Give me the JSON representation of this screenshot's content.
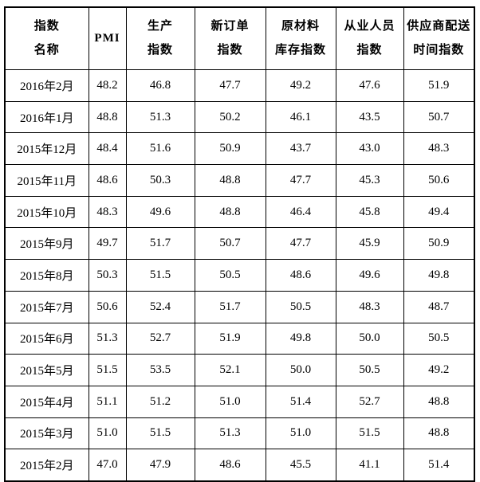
{
  "table": {
    "columns": [
      {
        "id": "index-name",
        "lines": [
          "指数",
          "名称"
        ]
      },
      {
        "id": "pmi",
        "lines": [
          "PMI"
        ]
      },
      {
        "id": "production-index",
        "lines": [
          "生产",
          "指数"
        ]
      },
      {
        "id": "new-orders-index",
        "lines": [
          "新订单",
          "指数"
        ]
      },
      {
        "id": "raw-materials-inventory-index",
        "lines": [
          "原材料",
          "库存指数"
        ]
      },
      {
        "id": "employment-index",
        "lines": [
          "从业人员",
          "指数"
        ]
      },
      {
        "id": "supplier-delivery-time-index",
        "lines": [
          "供应商配送",
          "时间指数"
        ]
      }
    ],
    "rows": [
      {
        "month": "2016年2月",
        "values": [
          "48.2",
          "46.8",
          "47.7",
          "49.2",
          "47.6",
          "51.9"
        ]
      },
      {
        "month": "2016年1月",
        "values": [
          "48.8",
          "51.3",
          "50.2",
          "46.1",
          "43.5",
          "50.7"
        ]
      },
      {
        "month": "2015年12月",
        "values": [
          "48.4",
          "51.6",
          "50.9",
          "43.7",
          "43.0",
          "48.3"
        ]
      },
      {
        "month": "2015年11月",
        "values": [
          "48.6",
          "50.3",
          "48.8",
          "47.7",
          "45.3",
          "50.6"
        ]
      },
      {
        "month": "2015年10月",
        "values": [
          "48.3",
          "49.6",
          "48.8",
          "46.4",
          "45.8",
          "49.4"
        ]
      },
      {
        "month": "2015年9月",
        "values": [
          "49.7",
          "51.7",
          "50.7",
          "47.7",
          "45.9",
          "50.9"
        ]
      },
      {
        "month": "2015年8月",
        "values": [
          "50.3",
          "51.5",
          "50.5",
          "48.6",
          "49.6",
          "49.8"
        ]
      },
      {
        "month": "2015年7月",
        "values": [
          "50.6",
          "52.4",
          "51.7",
          "50.5",
          "48.3",
          "48.7"
        ]
      },
      {
        "month": "2015年6月",
        "values": [
          "51.3",
          "52.7",
          "51.9",
          "49.8",
          "50.0",
          "50.5"
        ]
      },
      {
        "month": "2015年5月",
        "values": [
          "51.5",
          "53.5",
          "52.1",
          "50.0",
          "50.5",
          "49.2"
        ]
      },
      {
        "month": "2015年4月",
        "values": [
          "51.1",
          "51.2",
          "51.0",
          "51.4",
          "52.7",
          "48.8"
        ]
      },
      {
        "month": "2015年3月",
        "values": [
          "51.0",
          "51.5",
          "51.3",
          "51.0",
          "51.5",
          "48.8"
        ]
      },
      {
        "month": "2015年2月",
        "values": [
          "47.0",
          "47.9",
          "48.6",
          "45.5",
          "41.1",
          "51.4"
        ]
      }
    ]
  },
  "colors": {
    "border": "#000000",
    "text": "#000000",
    "background": "#ffffff"
  },
  "chart_data": {
    "type": "table",
    "title": "",
    "categories": [
      "2016年2月",
      "2016年1月",
      "2015年12月",
      "2015年11月",
      "2015年10月",
      "2015年9月",
      "2015年8月",
      "2015年7月",
      "2015年6月",
      "2015年5月",
      "2015年4月",
      "2015年3月",
      "2015年2月"
    ],
    "series": [
      {
        "name": "PMI",
        "values": [
          48.2,
          48.8,
          48.4,
          48.6,
          48.3,
          49.7,
          50.3,
          50.6,
          51.3,
          51.5,
          51.1,
          51.0,
          47.0
        ]
      },
      {
        "name": "生产指数",
        "values": [
          46.8,
          51.3,
          51.6,
          50.3,
          49.6,
          51.7,
          51.5,
          52.4,
          52.7,
          53.5,
          51.2,
          51.5,
          47.9
        ]
      },
      {
        "name": "新订单指数",
        "values": [
          47.7,
          50.2,
          50.9,
          48.8,
          48.8,
          50.7,
          50.5,
          51.7,
          51.9,
          52.1,
          51.0,
          51.3,
          48.6
        ]
      },
      {
        "name": "原材料库存指数",
        "values": [
          49.2,
          46.1,
          43.7,
          47.7,
          46.4,
          47.7,
          48.6,
          50.5,
          49.8,
          50.0,
          51.4,
          51.0,
          45.5
        ]
      },
      {
        "name": "从业人员指数",
        "values": [
          47.6,
          43.5,
          43.0,
          45.3,
          45.8,
          45.9,
          49.6,
          48.3,
          50.0,
          50.5,
          52.7,
          51.5,
          41.1
        ]
      },
      {
        "name": "供应商配送时间指数",
        "values": [
          51.9,
          50.7,
          48.3,
          50.6,
          49.4,
          50.9,
          49.8,
          48.7,
          50.5,
          49.2,
          48.8,
          48.8,
          51.4
        ]
      }
    ]
  }
}
